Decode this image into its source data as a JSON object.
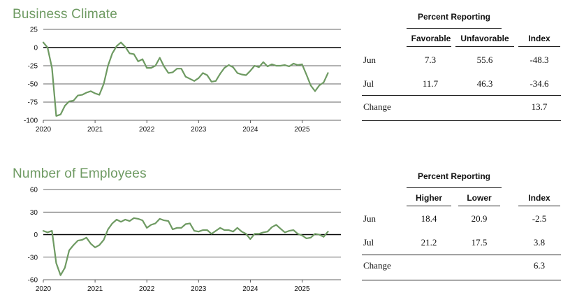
{
  "chart_data": [
    {
      "type": "line",
      "title": "Business Climate",
      "ylim": [
        -100,
        25
      ],
      "yticks": [
        25,
        0,
        -25,
        -50,
        -75,
        -100
      ],
      "xlim": [
        2020.0,
        2025.75
      ],
      "xticks": [
        2020,
        2021,
        2022,
        2023,
        2024,
        2025
      ],
      "color": "#6e9a62",
      "series": [
        {
          "x": [
            2020.0,
            2020.083,
            2020.167,
            2020.25,
            2020.333,
            2020.417,
            2020.5,
            2020.583,
            2020.667,
            2020.75,
            2020.833,
            2020.917,
            2021.0,
            2021.083,
            2021.167,
            2021.25,
            2021.333,
            2021.417,
            2021.5,
            2021.583,
            2021.667,
            2021.75,
            2021.833,
            2021.917,
            2022.0,
            2022.083,
            2022.167,
            2022.25,
            2022.333,
            2022.417,
            2022.5,
            2022.583,
            2022.667,
            2022.75,
            2022.833,
            2022.917,
            2023.0,
            2023.083,
            2023.167,
            2023.25,
            2023.333,
            2023.417,
            2023.5,
            2023.583,
            2023.667,
            2023.75,
            2023.833,
            2023.917,
            2024.0,
            2024.083,
            2024.167,
            2024.25,
            2024.333,
            2024.417,
            2024.5,
            2024.583,
            2024.667,
            2024.75,
            2024.833,
            2024.917,
            2025.0,
            2025.083,
            2025.167,
            2025.25,
            2025.333,
            2025.417,
            2025.5
          ],
          "values": [
            7,
            0,
            -28,
            -94,
            -92,
            -80,
            -74,
            -73,
            -66,
            -65,
            -62,
            -60,
            -63,
            -65,
            -50,
            -25,
            -8,
            2,
            7,
            1,
            -8,
            -9,
            -19,
            -16,
            -28,
            -28,
            -25,
            -14,
            -26,
            -35,
            -34,
            -29,
            -29,
            -40,
            -43,
            -46,
            -42,
            -35,
            -38,
            -47,
            -46,
            -36,
            -28,
            -24,
            -27,
            -35,
            -37,
            -38,
            -32,
            -25,
            -27,
            -20,
            -26,
            -23,
            -25,
            -25,
            -24,
            -26,
            -22,
            -24,
            -23,
            -37,
            -52,
            -60,
            -52,
            -48,
            -35
          ]
        }
      ]
    },
    {
      "type": "line",
      "title": "Number of Employees",
      "ylim": [
        -60,
        60
      ],
      "yticks": [
        60,
        30,
        0,
        -30,
        -60
      ],
      "xlim": [
        2020.0,
        2025.75
      ],
      "xticks": [
        2020,
        2021,
        2022,
        2023,
        2024,
        2025
      ],
      "color": "#6e9a62",
      "series": [
        {
          "x": [
            2020.0,
            2020.083,
            2020.167,
            2020.25,
            2020.333,
            2020.417,
            2020.5,
            2020.583,
            2020.667,
            2020.75,
            2020.833,
            2020.917,
            2021.0,
            2021.083,
            2021.167,
            2021.25,
            2021.333,
            2021.417,
            2021.5,
            2021.583,
            2021.667,
            2021.75,
            2021.833,
            2021.917,
            2022.0,
            2022.083,
            2022.167,
            2022.25,
            2022.333,
            2022.417,
            2022.5,
            2022.583,
            2022.667,
            2022.75,
            2022.833,
            2022.917,
            2023.0,
            2023.083,
            2023.167,
            2023.25,
            2023.333,
            2023.417,
            2023.5,
            2023.583,
            2023.667,
            2023.75,
            2023.833,
            2023.917,
            2024.0,
            2024.083,
            2024.167,
            2024.25,
            2024.333,
            2024.417,
            2024.5,
            2024.583,
            2024.667,
            2024.75,
            2024.833,
            2024.917,
            2025.0,
            2025.083,
            2025.167,
            2025.25,
            2025.333,
            2025.417,
            2025.5
          ],
          "values": [
            5,
            3,
            5,
            -38,
            -54,
            -44,
            -21,
            -14,
            -8,
            -7,
            -4,
            -12,
            -17,
            -14,
            -7,
            7,
            15,
            20,
            17,
            20,
            18,
            22,
            21,
            19,
            9,
            13,
            15,
            21,
            19,
            18,
            7,
            9,
            9,
            14,
            15,
            5,
            4,
            6,
            6,
            1,
            5,
            9,
            6,
            6,
            4,
            9,
            4,
            1,
            -6,
            1,
            1,
            3,
            4,
            10,
            13,
            8,
            3,
            5,
            6,
            1,
            -1,
            -5,
            -4,
            1,
            0,
            -3,
            4
          ]
        }
      ]
    }
  ],
  "tables": [
    {
      "header": "Percent Reporting",
      "columns": [
        "Favorable",
        "Unfavorable",
        "Index"
      ],
      "rows": [
        {
          "label": "Jun",
          "values": [
            "7.3",
            "55.6",
            "-48.3"
          ]
        },
        {
          "label": "Jul",
          "values": [
            "11.7",
            "46.3",
            "-34.6"
          ]
        },
        {
          "label": "Change",
          "values": [
            "",
            "",
            "13.7"
          ]
        }
      ]
    },
    {
      "header": "Percent Reporting",
      "columns": [
        "Higher",
        "Lower",
        "Index"
      ],
      "rows": [
        {
          "label": "Jun",
          "values": [
            "18.4",
            "20.9",
            "-2.5"
          ]
        },
        {
          "label": "Jul",
          "values": [
            "21.2",
            "17.5",
            "3.8"
          ]
        },
        {
          "label": "Change",
          "values": [
            "",
            "",
            "6.3"
          ]
        }
      ]
    }
  ]
}
